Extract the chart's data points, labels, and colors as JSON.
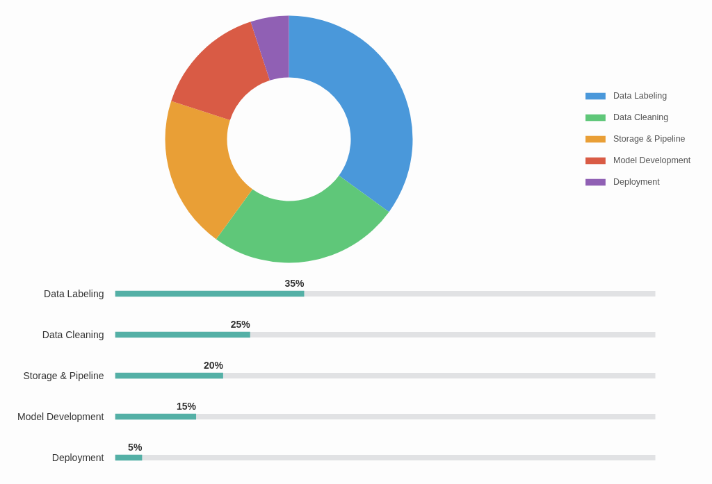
{
  "chart_data": [
    {
      "type": "donut",
      "categories": [
        "Data Labeling",
        "Data Cleaning",
        "Storage & Pipeline",
        "Model Development",
        "Deployment"
      ],
      "values": [
        35,
        25,
        20,
        15,
        5
      ],
      "colors": [
        "#4a98da",
        "#5fc779",
        "#e99f36",
        "#d95b45",
        "#9060b4"
      ],
      "legend": "right"
    },
    {
      "type": "bar",
      "orientation": "horizontal",
      "categories": [
        "Data Labeling",
        "Data Cleaning",
        "Storage & Pipeline",
        "Model Development",
        "Deployment"
      ],
      "values": [
        35,
        25,
        20,
        15,
        5
      ],
      "color": "#54b0a6",
      "xlim": [
        0,
        100
      ],
      "value_labels": [
        "35%",
        "25%",
        "20%",
        "15%",
        "5%"
      ],
      "tick_labels": "y"
    }
  ]
}
